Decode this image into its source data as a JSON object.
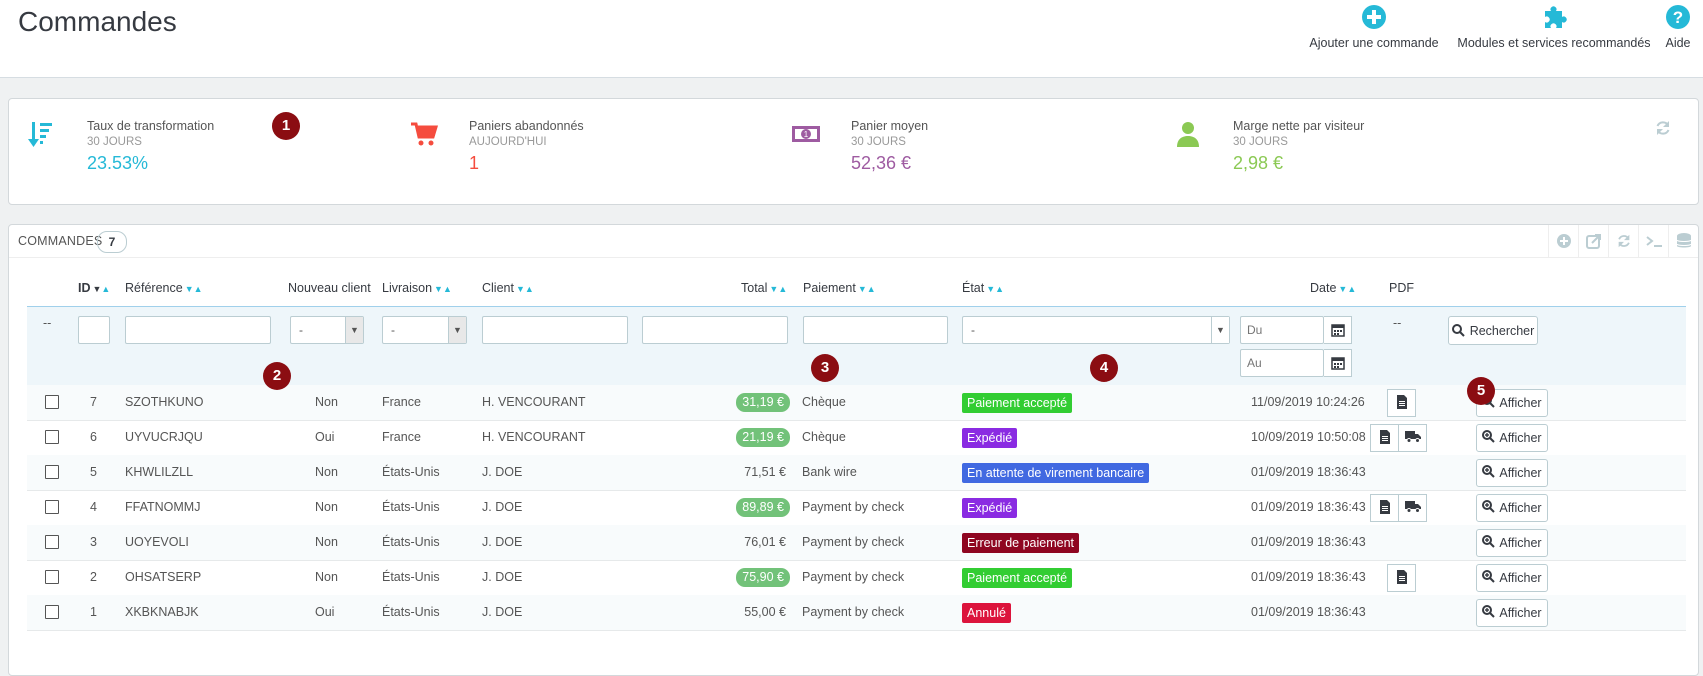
{
  "header": {
    "title": "Commandes",
    "toolbar": [
      {
        "label": "Ajouter une commande",
        "icon": "add-circle-icon"
      },
      {
        "label": "Modules et services recommandés",
        "icon": "puzzle-icon"
      },
      {
        "label": "Aide",
        "icon": "help-icon"
      }
    ]
  },
  "kpis": [
    {
      "title": "Taux de transformation",
      "period": "30 JOURS",
      "value": "23.53%",
      "color": "#25b9d7",
      "icon": "sort-amount-icon"
    },
    {
      "title": "Paniers abandonnés",
      "period": "AUJOURD'HUI",
      "value": "1",
      "color": "#f54c3e",
      "icon": "cart-icon"
    },
    {
      "title": "Panier moyen",
      "period": "30 JOURS",
      "value": "52,36 €",
      "color": "#9e5ba1",
      "icon": "money-icon"
    },
    {
      "title": "Marge nette par visiteur",
      "period": "30 JOURS",
      "value": "2,98 €",
      "color": "#8bc954",
      "icon": "user-icon"
    }
  ],
  "markers": [
    "1",
    "2",
    "3",
    "4",
    "5"
  ],
  "list": {
    "title": "COMMANDES",
    "count": "7",
    "columns": {
      "id": "ID",
      "reference": "Référence",
      "new_client": "Nouveau client",
      "delivery": "Livraison",
      "client": "Client",
      "total": "Total",
      "payment": "Paiement",
      "state": "État",
      "date": "Date",
      "pdf": "PDF"
    },
    "filters": {
      "bulk": "--",
      "new_client_value": "-",
      "delivery_value": "-",
      "state_value": "-",
      "date_from_placeholder": "Du",
      "date_to_placeholder": "Au",
      "pdf": "--",
      "search_label": "Rechercher"
    },
    "view_label": "Afficher",
    "rows": [
      {
        "id": "7",
        "reference": "SZOTHKUNO",
        "new_client": "Non",
        "delivery": "France",
        "client": "H. VENCOURANT",
        "total": "31,19 €",
        "total_badge": true,
        "payment": "Chèque",
        "state": "Paiement accepté",
        "state_color": "#32cd32",
        "date": "11/09/2019 10:24:26",
        "pdf": [
          "invoice"
        ]
      },
      {
        "id": "6",
        "reference": "UYVUCRJQU",
        "new_client": "Oui",
        "delivery": "France",
        "client": "H. VENCOURANT",
        "total": "21,19 €",
        "total_badge": true,
        "payment": "Chèque",
        "state": "Expédié",
        "state_color": "#8a2be2",
        "date": "10/09/2019 10:50:08",
        "pdf": [
          "invoice",
          "delivery"
        ]
      },
      {
        "id": "5",
        "reference": "KHWLILZLL",
        "new_client": "Non",
        "delivery": "États-Unis",
        "client": "J. DOE",
        "total": "71,51 €",
        "total_badge": false,
        "payment": "Bank wire",
        "state": "En attente de virement bancaire",
        "state_color": "#4169e1",
        "date": "01/09/2019 18:36:43",
        "pdf": []
      },
      {
        "id": "4",
        "reference": "FFATNOMMJ",
        "new_client": "Non",
        "delivery": "États-Unis",
        "client": "J. DOE",
        "total": "89,89 €",
        "total_badge": true,
        "payment": "Payment by check",
        "state": "Expédié",
        "state_color": "#8a2be2",
        "date": "01/09/2019 18:36:43",
        "pdf": [
          "invoice",
          "delivery"
        ]
      },
      {
        "id": "3",
        "reference": "UOYEVOLI",
        "new_client": "Non",
        "delivery": "États-Unis",
        "client": "J. DOE",
        "total": "76,01 €",
        "total_badge": false,
        "payment": "Payment by check",
        "state": "Erreur de paiement",
        "state_color": "#8f0621",
        "date": "01/09/2019 18:36:43",
        "pdf": []
      },
      {
        "id": "2",
        "reference": "OHSATSERP",
        "new_client": "Non",
        "delivery": "États-Unis",
        "client": "J. DOE",
        "total": "75,90 €",
        "total_badge": true,
        "payment": "Payment by check",
        "state": "Paiement accepté",
        "state_color": "#32cd32",
        "date": "01/09/2019 18:36:43",
        "pdf": [
          "invoice"
        ]
      },
      {
        "id": "1",
        "reference": "XKBKNABJK",
        "new_client": "Oui",
        "delivery": "États-Unis",
        "client": "J. DOE",
        "total": "55,00 €",
        "total_badge": false,
        "payment": "Payment by check",
        "state": "Annulé",
        "state_color": "#dc143c",
        "date": "01/09/2019 18:36:43",
        "pdf": []
      }
    ]
  }
}
